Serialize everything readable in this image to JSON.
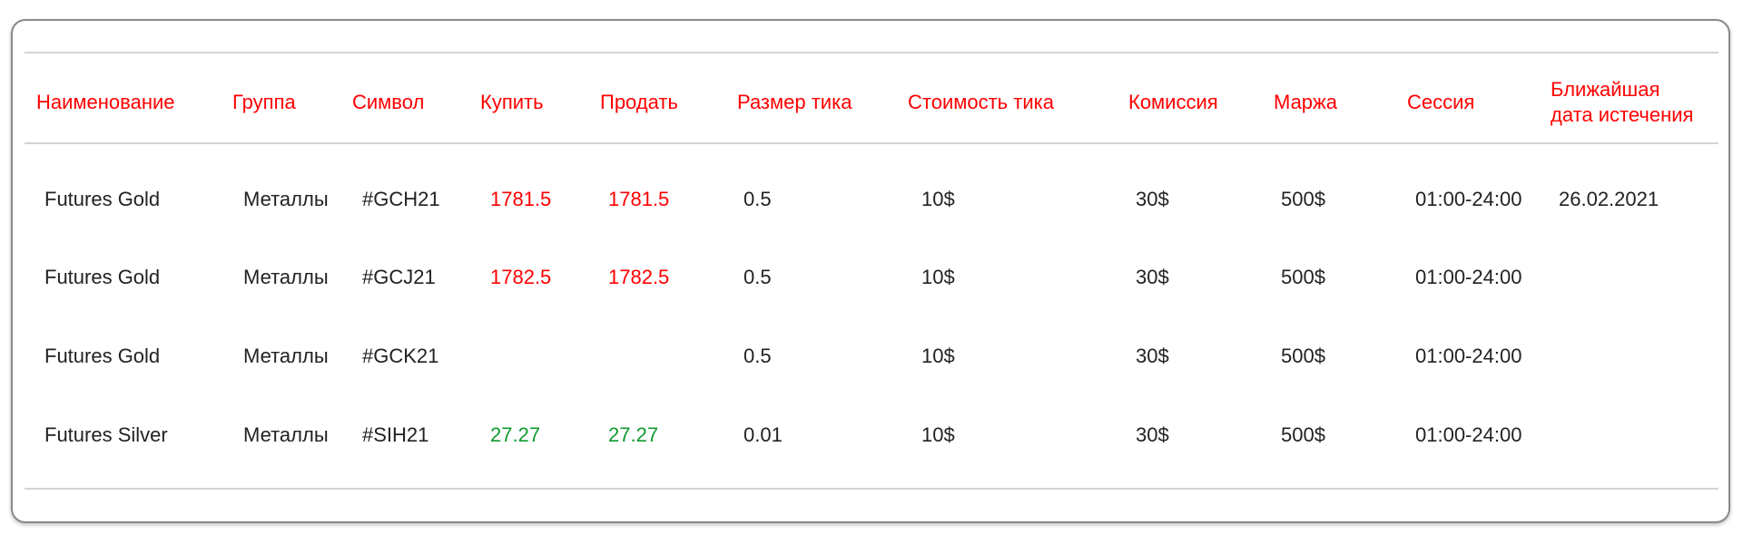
{
  "table": {
    "headers": [
      "Наименование",
      "Группа",
      "Символ",
      "Купить",
      "Продать",
      "Размер тика",
      "Стоимость тика",
      "Комиссия",
      "Маржа",
      "Сессия",
      "Ближайшая дата истечения"
    ],
    "header_last_lines": [
      "Ближайшая",
      "дата истечения"
    ],
    "rows": [
      {
        "name": "Futures Gold",
        "group": "Металлы",
        "symbol": "#GCH21",
        "buy": "1781.5",
        "sell": "1781.5",
        "tick_size": "0.5",
        "tick_value": "10$",
        "commission": "30$",
        "margin": "500$",
        "session": "01:00-24:00",
        "expiry": "26.02.2021",
        "price_color": "red"
      },
      {
        "name": "Futures Gold",
        "group": "Металлы",
        "symbol": "#GCJ21",
        "buy": "1782.5",
        "sell": "1782.5",
        "tick_size": "0.5",
        "tick_value": "10$",
        "commission": "30$",
        "margin": "500$",
        "session": "01:00-24:00",
        "expiry": "",
        "price_color": "red"
      },
      {
        "name": "Futures Gold",
        "group": "Металлы",
        "symbol": "#GCK21",
        "buy": "",
        "sell": "",
        "tick_size": "0.5",
        "tick_value": "10$",
        "commission": "30$",
        "margin": "500$",
        "session": "01:00-24:00",
        "expiry": "",
        "price_color": "red"
      },
      {
        "name": "Futures Silver",
        "group": "Металлы",
        "symbol": "#SIH21",
        "buy": "27.27",
        "sell": "27.27",
        "tick_size": "0.01",
        "tick_value": "10$",
        "commission": "30$",
        "margin": "500$",
        "session": "01:00-24:00",
        "expiry": "",
        "price_color": "green"
      }
    ]
  },
  "colors": {
    "header": "#ff0000",
    "price_up": "#ff0000",
    "price_down": "#109a2e",
    "text": "#222222"
  }
}
